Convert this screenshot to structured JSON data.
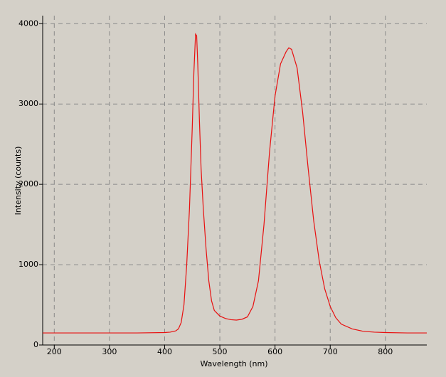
{
  "chart_data": {
    "type": "line",
    "x_label": "Wavelength (nm)",
    "y_label": "Intensity (counts)",
    "x": [
      179,
      200,
      250,
      300,
      350,
      400,
      410,
      420,
      425,
      430,
      435,
      440,
      445,
      450,
      453,
      456,
      458,
      460,
      463,
      466,
      470,
      475,
      480,
      485,
      490,
      500,
      510,
      520,
      530,
      540,
      550,
      560,
      570,
      580,
      590,
      600,
      610,
      620,
      625,
      630,
      640,
      650,
      660,
      670,
      680,
      690,
      700,
      710,
      720,
      740,
      760,
      780,
      800,
      840,
      875
    ],
    "series": [
      {
        "color": "#e81010",
        "values": [
          150,
          150,
          150,
          150,
          150,
          155,
          160,
          175,
          200,
          280,
          500,
          1000,
          1700,
          2700,
          3400,
          3870,
          3850,
          3500,
          2800,
          2200,
          1700,
          1200,
          800,
          550,
          430,
          360,
          330,
          315,
          310,
          320,
          350,
          480,
          800,
          1500,
          2400,
          3100,
          3500,
          3650,
          3700,
          3680,
          3450,
          2900,
          2200,
          1550,
          1050,
          700,
          480,
          340,
          260,
          200,
          170,
          160,
          155,
          150,
          150
        ]
      }
    ],
    "xlim": [
      179,
      875
    ],
    "ylim": [
      0,
      4100
    ],
    "xticks": [
      200,
      300,
      400,
      500,
      600,
      700,
      800
    ],
    "yticks": [
      0,
      1000,
      2000,
      3000,
      4000
    ],
    "grid": true
  }
}
